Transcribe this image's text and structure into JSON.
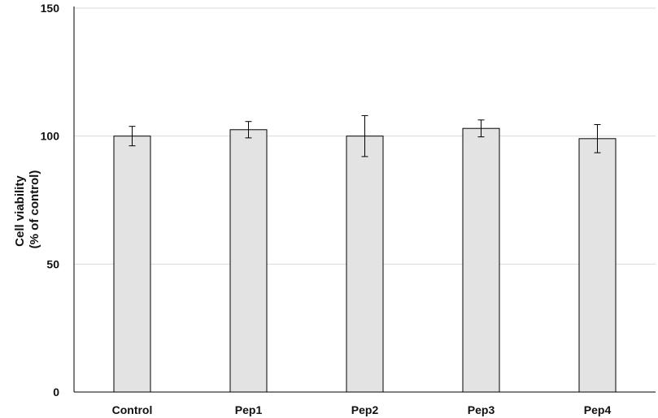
{
  "chart_data": {
    "type": "bar",
    "title": "",
    "xlabel": "",
    "ylabel": [
      "Cell viability",
      "(% of control)"
    ],
    "categories": [
      "Control",
      "Pep1",
      "Pep2",
      "Pep3",
      "Pep4"
    ],
    "values": [
      100,
      102.5,
      100,
      103,
      99
    ],
    "error": [
      3.8,
      3.2,
      8,
      3.3,
      5.5
    ],
    "ylim": [
      0,
      150
    ],
    "yticks": [
      0,
      50,
      100,
      150
    ],
    "grid": true,
    "bar_color": "#e3e3e3",
    "bar_edge_color": "#000000"
  }
}
